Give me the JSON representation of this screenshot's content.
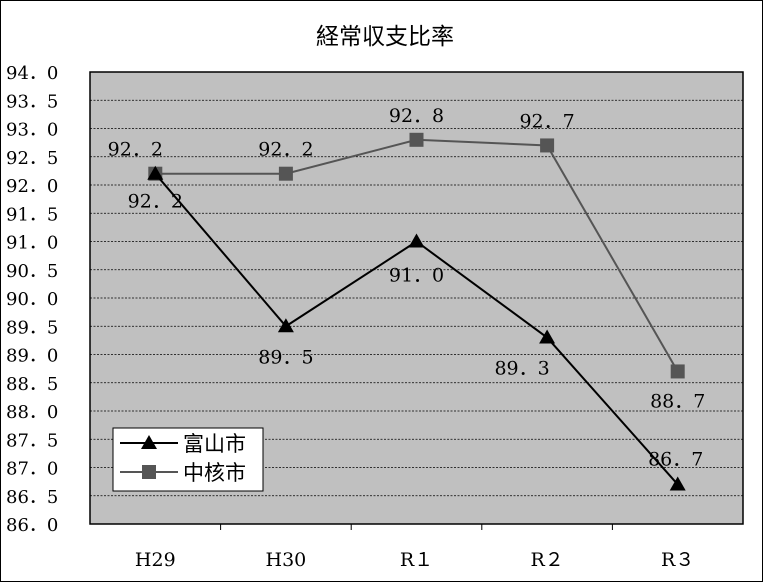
{
  "chart_data": {
    "type": "line",
    "title": "経常収支比率",
    "categories": [
      "H29",
      "H30",
      "R１",
      "R２",
      "R３"
    ],
    "ylim": [
      86.0,
      94.0
    ],
    "ytick_step": 0.5,
    "ytick_labels": [
      "86．0",
      "86．5",
      "87．0",
      "87．5",
      "88．0",
      "88．5",
      "89．0",
      "89．5",
      "90．0",
      "90．5",
      "91．0",
      "91．5",
      "92．0",
      "92．5",
      "93．0",
      "93．5",
      "94．0"
    ],
    "grid": true,
    "legend_position": "bottom-left",
    "series": [
      {
        "name": "富山市",
        "marker": "triangle",
        "color": "#000000",
        "values": [
          92.2,
          89.5,
          91.0,
          89.3,
          86.7
        ],
        "data_labels": [
          "92．2",
          "89．5",
          "91．0",
          "89．3",
          "86．7"
        ]
      },
      {
        "name": "中核市",
        "marker": "square",
        "color": "#555555",
        "values": [
          92.2,
          92.2,
          92.8,
          92.7,
          88.7
        ],
        "data_labels": [
          "92．2",
          "92．2",
          "92．8",
          "92．7",
          "88．7"
        ]
      }
    ]
  }
}
